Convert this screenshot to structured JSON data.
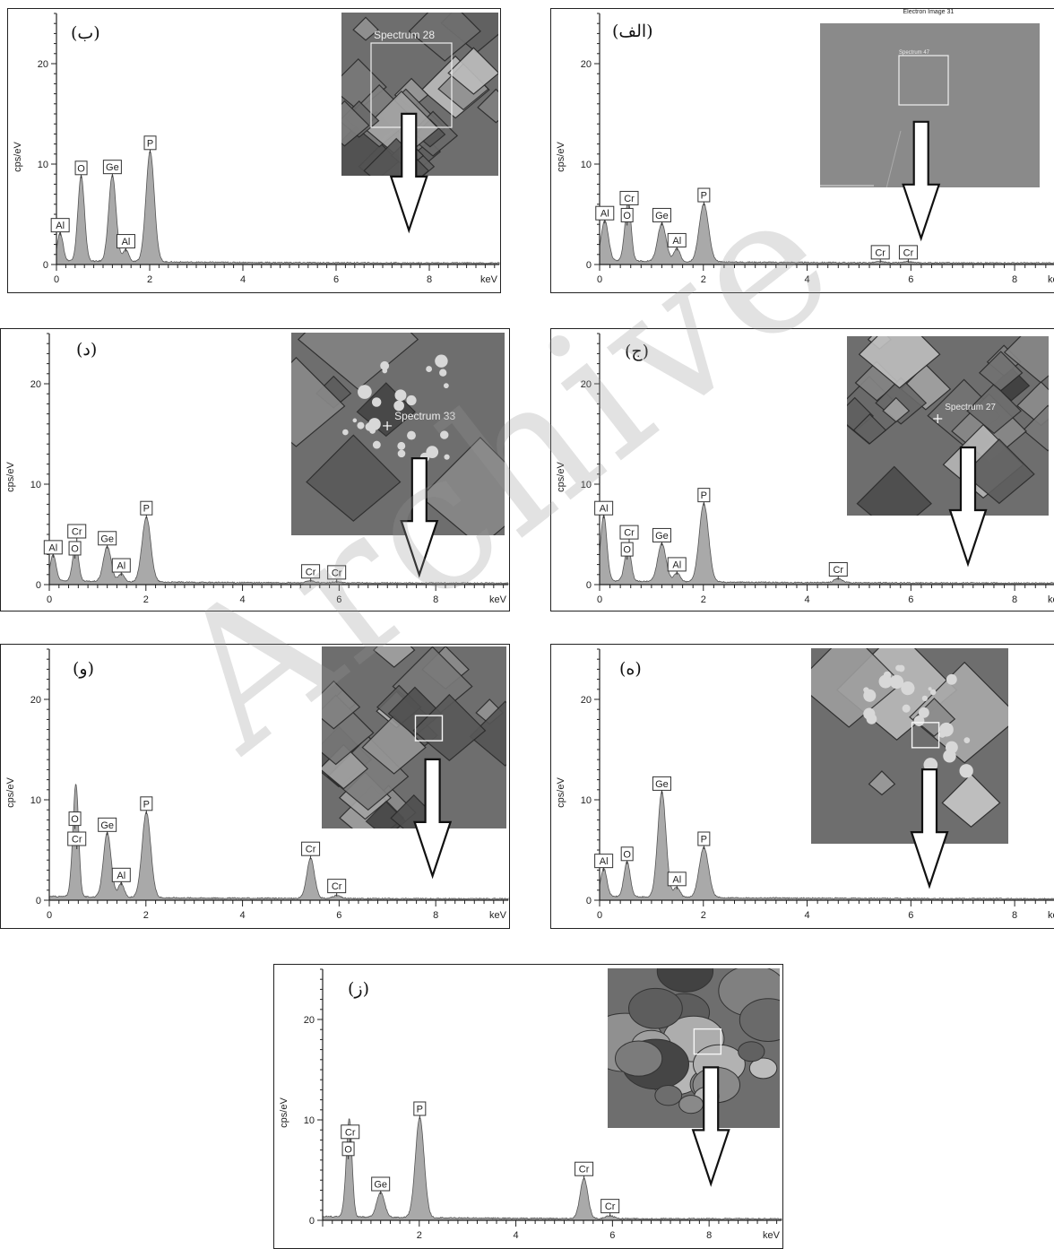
{
  "watermark": "Archive",
  "chart_data": [
    {
      "id": "alef",
      "label": "(الف)",
      "type": "area",
      "xlabel": "keV",
      "ylabel": "cps/eV",
      "xlim": [
        0,
        9
      ],
      "ylim": [
        0,
        25
      ],
      "xticks": [
        "0",
        "2",
        "4",
        "6",
        "8"
      ],
      "yticks": [
        "0",
        "10",
        "20"
      ],
      "peaks": [
        {
          "el": "Al",
          "x": 0.1,
          "y": 4.0,
          "w": 0.07
        },
        {
          "el": "O",
          "x": 0.53,
          "y": 3.8,
          "w": 0.06
        },
        {
          "el": "Cr",
          "x": 0.57,
          "y": 2.6,
          "w": 0.05
        },
        {
          "el": "Ge",
          "x": 1.2,
          "y": 3.8,
          "w": 0.08
        },
        {
          "el": "Al",
          "x": 1.49,
          "y": 1.3,
          "w": 0.06
        },
        {
          "el": "P",
          "x": 2.01,
          "y": 5.8,
          "w": 0.09
        },
        {
          "el": "Cr",
          "x": 5.41,
          "y": 0.1,
          "w": 0.08
        },
        {
          "el": "Cr",
          "x": 5.95,
          "y": 0.1,
          "w": 0.08
        }
      ],
      "inset": {
        "label": "Electron Image 31",
        "spectrum_label": "Spectrum 47"
      }
    },
    {
      "id": "be",
      "label": "(ب)",
      "type": "area",
      "xlabel": "keV",
      "ylabel": "cps/eV",
      "xlim": [
        0,
        9.5
      ],
      "ylim": [
        0,
        25
      ],
      "xticks": [
        "0",
        "2",
        "4",
        "6",
        "8"
      ],
      "yticks": [
        "0",
        "10",
        "20"
      ],
      "peaks": [
        {
          "el": "Al",
          "x": 0.08,
          "y": 2.8,
          "w": 0.06
        },
        {
          "el": "O",
          "x": 0.53,
          "y": 8.5,
          "w": 0.07
        },
        {
          "el": "Ge",
          "x": 1.2,
          "y": 8.6,
          "w": 0.08
        },
        {
          "el": "Al",
          "x": 1.49,
          "y": 1.2,
          "w": 0.06
        },
        {
          "el": "P",
          "x": 2.01,
          "y": 11.0,
          "w": 0.09
        }
      ],
      "inset": {
        "spectrum_label": "Spectrum 28"
      }
    },
    {
      "id": "jim",
      "label": "(ج)",
      "type": "area",
      "xlabel": "keV",
      "ylabel": "cps/eV",
      "xlim": [
        0,
        9
      ],
      "ylim": [
        0,
        25
      ],
      "xticks": [
        "0",
        "2",
        "4",
        "6",
        "8"
      ],
      "yticks": [
        "0",
        "10",
        "20"
      ],
      "peaks": [
        {
          "el": "Al",
          "x": 0.08,
          "y": 6.5,
          "w": 0.06
        },
        {
          "el": "O",
          "x": 0.53,
          "y": 2.4,
          "w": 0.06
        },
        {
          "el": "Cr",
          "x": 0.57,
          "y": 1.4,
          "w": 0.05
        },
        {
          "el": "Ge",
          "x": 1.2,
          "y": 3.8,
          "w": 0.08
        },
        {
          "el": "Al",
          "x": 1.49,
          "y": 0.9,
          "w": 0.06
        },
        {
          "el": "P",
          "x": 2.01,
          "y": 7.8,
          "w": 0.09
        },
        {
          "el": "Cr",
          "x": 4.6,
          "y": 0.4,
          "w": 0.08
        }
      ],
      "inset": {
        "spectrum_label": "Spectrum 27"
      }
    },
    {
      "id": "dal",
      "label": "(د)",
      "type": "area",
      "xlabel": "keV",
      "ylabel": "cps/eV",
      "xlim": [
        0,
        9.5
      ],
      "ylim": [
        0,
        25
      ],
      "xticks": [
        "0",
        "2",
        "4",
        "6",
        "8"
      ],
      "yticks": [
        "0",
        "10",
        "20"
      ],
      "peaks": [
        {
          "el": "Al",
          "x": 0.08,
          "y": 2.6,
          "w": 0.06
        },
        {
          "el": "O",
          "x": 0.53,
          "y": 2.5,
          "w": 0.06
        },
        {
          "el": "Cr",
          "x": 0.57,
          "y": 1.4,
          "w": 0.05
        },
        {
          "el": "Ge",
          "x": 1.2,
          "y": 3.5,
          "w": 0.08
        },
        {
          "el": "Al",
          "x": 1.49,
          "y": 0.8,
          "w": 0.06
        },
        {
          "el": "P",
          "x": 2.01,
          "y": 6.5,
          "w": 0.09
        },
        {
          "el": "Cr",
          "x": 5.41,
          "y": 0.2,
          "w": 0.08
        },
        {
          "el": "Cr",
          "x": 5.95,
          "y": 0.1,
          "w": 0.08
        }
      ],
      "inset": {
        "spectrum_label": "Spectrum 33"
      }
    },
    {
      "id": "he",
      "label": "(ه)",
      "type": "area",
      "xlabel": "keV",
      "ylabel": "cps/eV",
      "xlim": [
        0,
        9
      ],
      "ylim": [
        0,
        25
      ],
      "xticks": [
        "0",
        "2",
        "4",
        "6",
        "8"
      ],
      "yticks": [
        "0",
        "10",
        "20"
      ],
      "peaks": [
        {
          "el": "Al",
          "x": 0.08,
          "y": 2.8,
          "w": 0.06
        },
        {
          "el": "O",
          "x": 0.53,
          "y": 3.5,
          "w": 0.06
        },
        {
          "el": "Ge",
          "x": 1.2,
          "y": 10.5,
          "w": 0.08
        },
        {
          "el": "Al",
          "x": 1.49,
          "y": 1.0,
          "w": 0.06
        },
        {
          "el": "P",
          "x": 2.01,
          "y": 5.0,
          "w": 0.09
        }
      ],
      "inset": {}
    },
    {
      "id": "vav",
      "label": "(و)",
      "type": "area",
      "xlabel": "keV",
      "ylabel": "cps/eV",
      "xlim": [
        0,
        9.5
      ],
      "ylim": [
        0,
        25
      ],
      "xticks": [
        "0",
        "2",
        "4",
        "6",
        "8"
      ],
      "yticks": [
        "0",
        "10",
        "20"
      ],
      "peaks": [
        {
          "el": "O",
          "x": 0.53,
          "y": 7.0,
          "w": 0.06
        },
        {
          "el": "Cr",
          "x": 0.57,
          "y": 5.0,
          "w": 0.05
        },
        {
          "el": "Ge",
          "x": 1.2,
          "y": 6.4,
          "w": 0.08
        },
        {
          "el": "Al",
          "x": 1.49,
          "y": 1.4,
          "w": 0.06
        },
        {
          "el": "P",
          "x": 2.01,
          "y": 8.5,
          "w": 0.09
        },
        {
          "el": "Cr",
          "x": 5.41,
          "y": 4.0,
          "w": 0.08
        },
        {
          "el": "Cr",
          "x": 5.95,
          "y": 0.3,
          "w": 0.08
        }
      ],
      "inset": {}
    },
    {
      "id": "ze",
      "label": "(ز)",
      "type": "area",
      "xlabel": "keV",
      "ylabel": "cps/eV",
      "xlim": [
        0,
        9.5
      ],
      "ylim": [
        0,
        25
      ],
      "xticks": [
        "2",
        "4",
        "6",
        "8"
      ],
      "yticks": [
        "0",
        "10",
        "20"
      ],
      "peaks": [
        {
          "el": "O",
          "x": 0.53,
          "y": 6.0,
          "w": 0.06
        },
        {
          "el": "Cr",
          "x": 0.57,
          "y": 4.5,
          "w": 0.05
        },
        {
          "el": "Ge",
          "x": 1.2,
          "y": 2.5,
          "w": 0.08
        },
        {
          "el": "P",
          "x": 2.01,
          "y": 10.0,
          "w": 0.09
        },
        {
          "el": "Cr",
          "x": 5.41,
          "y": 4.0,
          "w": 0.08
        },
        {
          "el": "Cr",
          "x": 5.95,
          "y": 0.3,
          "w": 0.08
        }
      ],
      "inset": {}
    }
  ]
}
